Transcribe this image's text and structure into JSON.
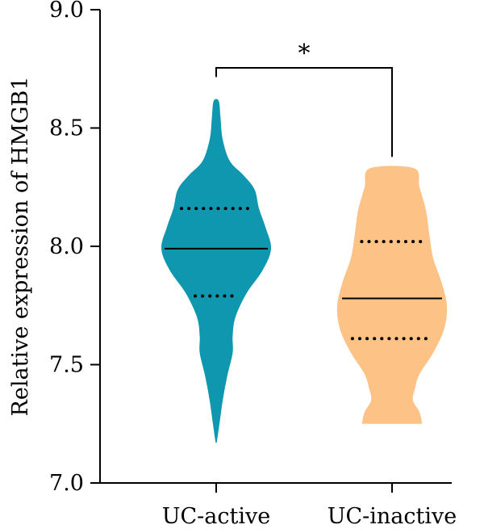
{
  "chart_data": {
    "type": "violin",
    "title": "",
    "xlabel": "",
    "ylabel": "Relative expression of HMGB1",
    "ylim": [
      7.0,
      9.0
    ],
    "yticks": [
      "7.0",
      "7.5",
      "8.0",
      "8.5",
      "9.0"
    ],
    "categories": [
      "UC-active",
      "UC-inactive"
    ],
    "grid": false,
    "legend": "none",
    "significance": {
      "label": "*",
      "between": [
        "UC-active",
        "UC-inactive"
      ]
    },
    "series": [
      {
        "category": "UC-active",
        "color": "#0f97b0",
        "median": 7.99,
        "q1": 7.79,
        "q3": 8.16,
        "min": 7.17,
        "max": 8.62,
        "profile": [
          [
            7.17,
            0.01
          ],
          [
            7.25,
            0.06
          ],
          [
            7.35,
            0.12
          ],
          [
            7.45,
            0.2
          ],
          [
            7.55,
            0.3
          ],
          [
            7.62,
            0.3
          ],
          [
            7.7,
            0.35
          ],
          [
            7.8,
            0.55
          ],
          [
            7.9,
            0.85
          ],
          [
            7.99,
            1.0
          ],
          [
            8.08,
            0.9
          ],
          [
            8.16,
            0.78
          ],
          [
            8.24,
            0.7
          ],
          [
            8.3,
            0.5
          ],
          [
            8.36,
            0.25
          ],
          [
            8.45,
            0.12
          ],
          [
            8.54,
            0.08
          ],
          [
            8.6,
            0.06
          ],
          [
            8.62,
            0.03
          ]
        ]
      },
      {
        "category": "UC-inactive",
        "color": "#fcc286",
        "median": 7.78,
        "q1": 7.61,
        "q3": 8.02,
        "min": 7.25,
        "max": 8.33,
        "profile": [
          [
            7.25,
            0.55
          ],
          [
            7.3,
            0.5
          ],
          [
            7.35,
            0.38
          ],
          [
            7.4,
            0.42
          ],
          [
            7.46,
            0.5
          ],
          [
            7.55,
            0.75
          ],
          [
            7.65,
            0.95
          ],
          [
            7.75,
            1.0
          ],
          [
            7.85,
            0.9
          ],
          [
            7.95,
            0.75
          ],
          [
            8.05,
            0.68
          ],
          [
            8.15,
            0.62
          ],
          [
            8.25,
            0.5
          ],
          [
            8.33,
            0.4
          ]
        ]
      }
    ]
  }
}
